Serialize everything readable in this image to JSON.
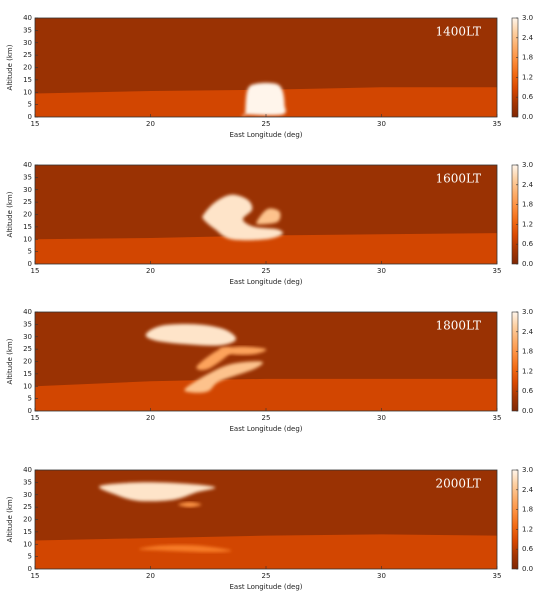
{
  "chart_data": [
    {
      "type": "heatmap",
      "label": "1400LT",
      "x_label": "East Longitude (deg)",
      "y_label": "Altitude (km)",
      "xlim": [
        15,
        35
      ],
      "ylim": [
        0,
        40
      ],
      "xticks": [
        15,
        20,
        25,
        30,
        35
      ],
      "yticks": [
        0,
        5,
        10,
        15,
        20,
        25,
        30,
        35,
        40
      ],
      "clim": [
        0,
        3
      ],
      "cticks": [
        {
          "value": 0,
          "label": "0.0"
        },
        0.6,
        1.2,
        1.8,
        {
          "value": 2.4,
          "label": "2.4"
        },
        {
          "value": 3,
          "label": "3.0"
        }
      ],
      "colormap": [
        "#7f2704",
        "#a63603",
        "#d94801",
        "#f16913",
        "#fd8d3c",
        "#fdae6b",
        "#fdd0a2",
        "#fff5eb"
      ],
      "regions": [
        {
          "value": 0.3,
          "x": [
            15,
            35,
            35,
            15
          ],
          "y": [
            0,
            0,
            40,
            40
          ]
        },
        {
          "value": 0.8,
          "x": [
            15,
            20,
            25,
            30,
            35,
            35,
            15
          ],
          "y": [
            9.5,
            10.5,
            11,
            12,
            12,
            0,
            0
          ]
        },
        {
          "value": 3,
          "x": [
            24.1,
            24.2,
            24.6,
            25.4,
            25.7,
            25.8,
            25.7,
            24.1
          ],
          "y": [
            1,
            11,
            13.5,
            13.5,
            11,
            5,
            1,
            1
          ]
        }
      ]
    },
    {
      "type": "heatmap",
      "label": "1600LT",
      "x_label": "East Longitude (deg)",
      "y_label": "Altitude (km)",
      "xlim": [
        15,
        35
      ],
      "ylim": [
        0,
        40
      ],
      "xticks": [
        15,
        20,
        25,
        30,
        35
      ],
      "yticks": [
        0,
        5,
        10,
        15,
        20,
        25,
        30,
        35,
        40
      ],
      "clim": [
        0,
        3
      ],
      "cticks": [
        {
          "value": 0,
          "label": "0.0"
        },
        0.6,
        1.2,
        1.8,
        {
          "value": 2.4,
          "label": "2.4"
        },
        {
          "value": 3,
          "label": "3.0"
        }
      ],
      "colormap": [
        "#7f2704",
        "#a63603",
        "#d94801",
        "#f16913",
        "#fd8d3c",
        "#fdae6b",
        "#fdd0a2",
        "#fff5eb"
      ],
      "regions": [
        {
          "value": 0.3,
          "x": [
            15,
            35,
            35,
            15
          ],
          "y": [
            0,
            0,
            40,
            40
          ]
        },
        {
          "value": 0.8,
          "x": [
            15,
            20,
            25,
            30,
            35,
            35,
            15
          ],
          "y": [
            10,
            10.5,
            11.5,
            12,
            12.5,
            0,
            0
          ]
        },
        {
          "value": 2.8,
          "x": [
            22.3,
            22.8,
            23.5,
            24.2,
            24.4,
            24.0,
            24.5,
            25.5,
            25.7,
            25.0,
            23.5,
            22.8,
            22.3
          ],
          "y": [
            20,
            25,
            28,
            26,
            22,
            18,
            15,
            14,
            12,
            10,
            10,
            14,
            18
          ]
        },
        {
          "value": 2.4,
          "x": [
            24.6,
            24.9,
            25.2,
            25.6,
            25.5,
            24.7
          ],
          "y": [
            17,
            21,
            22.5,
            21,
            17,
            16
          ]
        }
      ]
    },
    {
      "type": "heatmap",
      "label": "1800LT",
      "x_label": "East Longitude (deg)",
      "y_label": "Altitude (km)",
      "xlim": [
        15,
        35
      ],
      "ylim": [
        0,
        40
      ],
      "xticks": [
        15,
        20,
        25,
        30,
        35
      ],
      "yticks": [
        0,
        5,
        10,
        15,
        20,
        25,
        30,
        35,
        40
      ],
      "clim": [
        0,
        3
      ],
      "cticks": [
        {
          "value": 0,
          "label": "0.0"
        },
        0.6,
        1.2,
        1.8,
        {
          "value": 2.4,
          "label": "2.4"
        },
        {
          "value": 3,
          "label": "3.0"
        }
      ],
      "colormap": [
        "#7f2704",
        "#a63603",
        "#d94801",
        "#f16913",
        "#fd8d3c",
        "#fdae6b",
        "#fdd0a2",
        "#fff5eb"
      ],
      "regions": [
        {
          "value": 0.3,
          "x": [
            15,
            35,
            35,
            15
          ],
          "y": [
            0,
            0,
            40,
            40
          ]
        },
        {
          "value": 0.8,
          "x": [
            15,
            20,
            25,
            30,
            35,
            35,
            15
          ],
          "y": [
            10,
            12,
            13,
            13,
            13,
            0,
            0
          ]
        },
        {
          "value": 2.4,
          "x": [
            21.5,
            22.5,
            23.5,
            24.8,
            24.5,
            23,
            22.5,
            21.8
          ],
          "y": [
            9,
            15,
            19,
            20,
            17,
            12,
            8,
            7.5
          ]
        },
        {
          "value": 2,
          "x": [
            22,
            23,
            23.5,
            22.5
          ],
          "y": [
            18,
            25,
            24,
            17
          ]
        },
        {
          "value": 2,
          "x": [
            23,
            24,
            25,
            24.5,
            23.5
          ],
          "y": [
            25,
            26,
            25,
            23,
            23
          ]
        },
        {
          "value": 2.8,
          "x": [
            19.8,
            20.5,
            22,
            23.2,
            23.7,
            23,
            21.5,
            20.2
          ],
          "y": [
            31,
            34.5,
            35,
            33,
            29,
            26.5,
            27,
            28.5
          ]
        }
      ]
    },
    {
      "type": "heatmap",
      "label": "2000LT",
      "x_label": "East Longitude (deg)",
      "y_label": "Altitude (km)",
      "xlim": [
        15,
        35
      ],
      "ylim": [
        0,
        40
      ],
      "xticks": [
        15,
        20,
        25,
        30,
        35
      ],
      "yticks": [
        0,
        5,
        10,
        15,
        20,
        25,
        30,
        35,
        40
      ],
      "clim": [
        0,
        3
      ],
      "cticks": [
        {
          "value": 0,
          "label": "0.0"
        },
        0.6,
        1.2,
        1.8,
        {
          "value": 2.4,
          "label": "2.4"
        },
        {
          "value": 3,
          "label": "3.0"
        }
      ],
      "colormap": [
        "#7f2704",
        "#a63603",
        "#d94801",
        "#f16913",
        "#fd8d3c",
        "#fdae6b",
        "#fdd0a2",
        "#fff5eb"
      ],
      "regions": [
        {
          "value": 0.3,
          "x": [
            15,
            35,
            35,
            15
          ],
          "y": [
            0,
            0,
            40,
            40
          ]
        },
        {
          "value": 0.8,
          "x": [
            15,
            20,
            25,
            30,
            35,
            35,
            15
          ],
          "y": [
            11.5,
            12.5,
            13.5,
            14,
            13.5,
            0,
            0
          ]
        },
        {
          "value": 1.5,
          "x": [
            19.5,
            20.5,
            22,
            23.5,
            22.5,
            20.5
          ],
          "y": [
            8,
            9.5,
            9.5,
            7.5,
            6.8,
            7.5
          ]
        },
        {
          "value": 1.8,
          "x": [
            21.2,
            21.7,
            22.2,
            21.7
          ],
          "y": [
            26,
            27,
            26,
            25
          ]
        },
        {
          "value": 2.8,
          "x": [
            17.8,
            19.5,
            21.5,
            22.8,
            22,
            21,
            19.5,
            18.5
          ],
          "y": [
            33.5,
            35,
            34.5,
            33,
            31,
            28,
            27.5,
            30
          ]
        }
      ]
    }
  ]
}
